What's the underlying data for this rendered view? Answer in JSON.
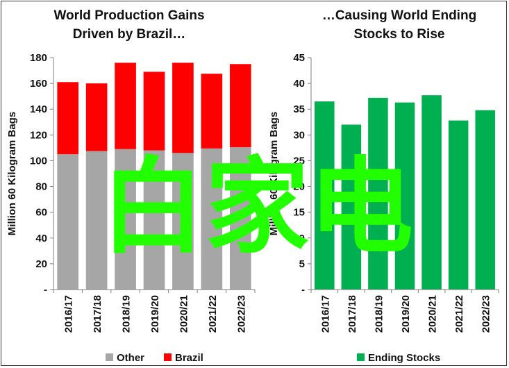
{
  "chart_data": [
    {
      "type": "bar",
      "stacked": true,
      "title_lines": [
        "World Production Gains",
        "Driven by Brazil…"
      ],
      "ylabel": "Million 60 Kilogram Bags",
      "ylim": [
        0,
        180
      ],
      "yticks": [
        "-",
        "20",
        "40",
        "60",
        "80",
        "100",
        "120",
        "140",
        "160",
        "180"
      ],
      "categories": [
        "2016/17",
        "2017/18",
        "2018/19",
        "2019/20",
        "2020/21",
        "2021/22",
        "2022/23"
      ],
      "series": [
        {
          "name": "Other",
          "color": "#a6a6a6",
          "values": [
            105,
            107.5,
            109,
            108,
            106,
            109.5,
            110.5
          ]
        },
        {
          "name": "Brazil",
          "color": "#ff0000",
          "values": [
            56,
            52.5,
            67,
            61,
            70,
            58,
            64.5
          ]
        }
      ],
      "legend_position": "bottom"
    },
    {
      "type": "bar",
      "title_lines": [
        "…Causing World Ending",
        "Stocks to Rise"
      ],
      "ylabel": "Million 60 Kilogram Bags",
      "ylim": [
        0,
        45
      ],
      "yticks": [
        "-",
        "5",
        "10",
        "15",
        "20",
        "25",
        "30",
        "35",
        "40",
        "45"
      ],
      "categories": [
        "2016/17",
        "2017/18",
        "2018/19",
        "2019/20",
        "2020/21",
        "2021/22",
        "2022/23"
      ],
      "series": [
        {
          "name": "Ending Stocks",
          "color": "#00b050",
          "values": [
            36.5,
            32,
            37.2,
            36.3,
            37.7,
            32.8,
            34.8
          ]
        }
      ],
      "legend_position": "bottom"
    }
  ],
  "watermark": "白家电"
}
